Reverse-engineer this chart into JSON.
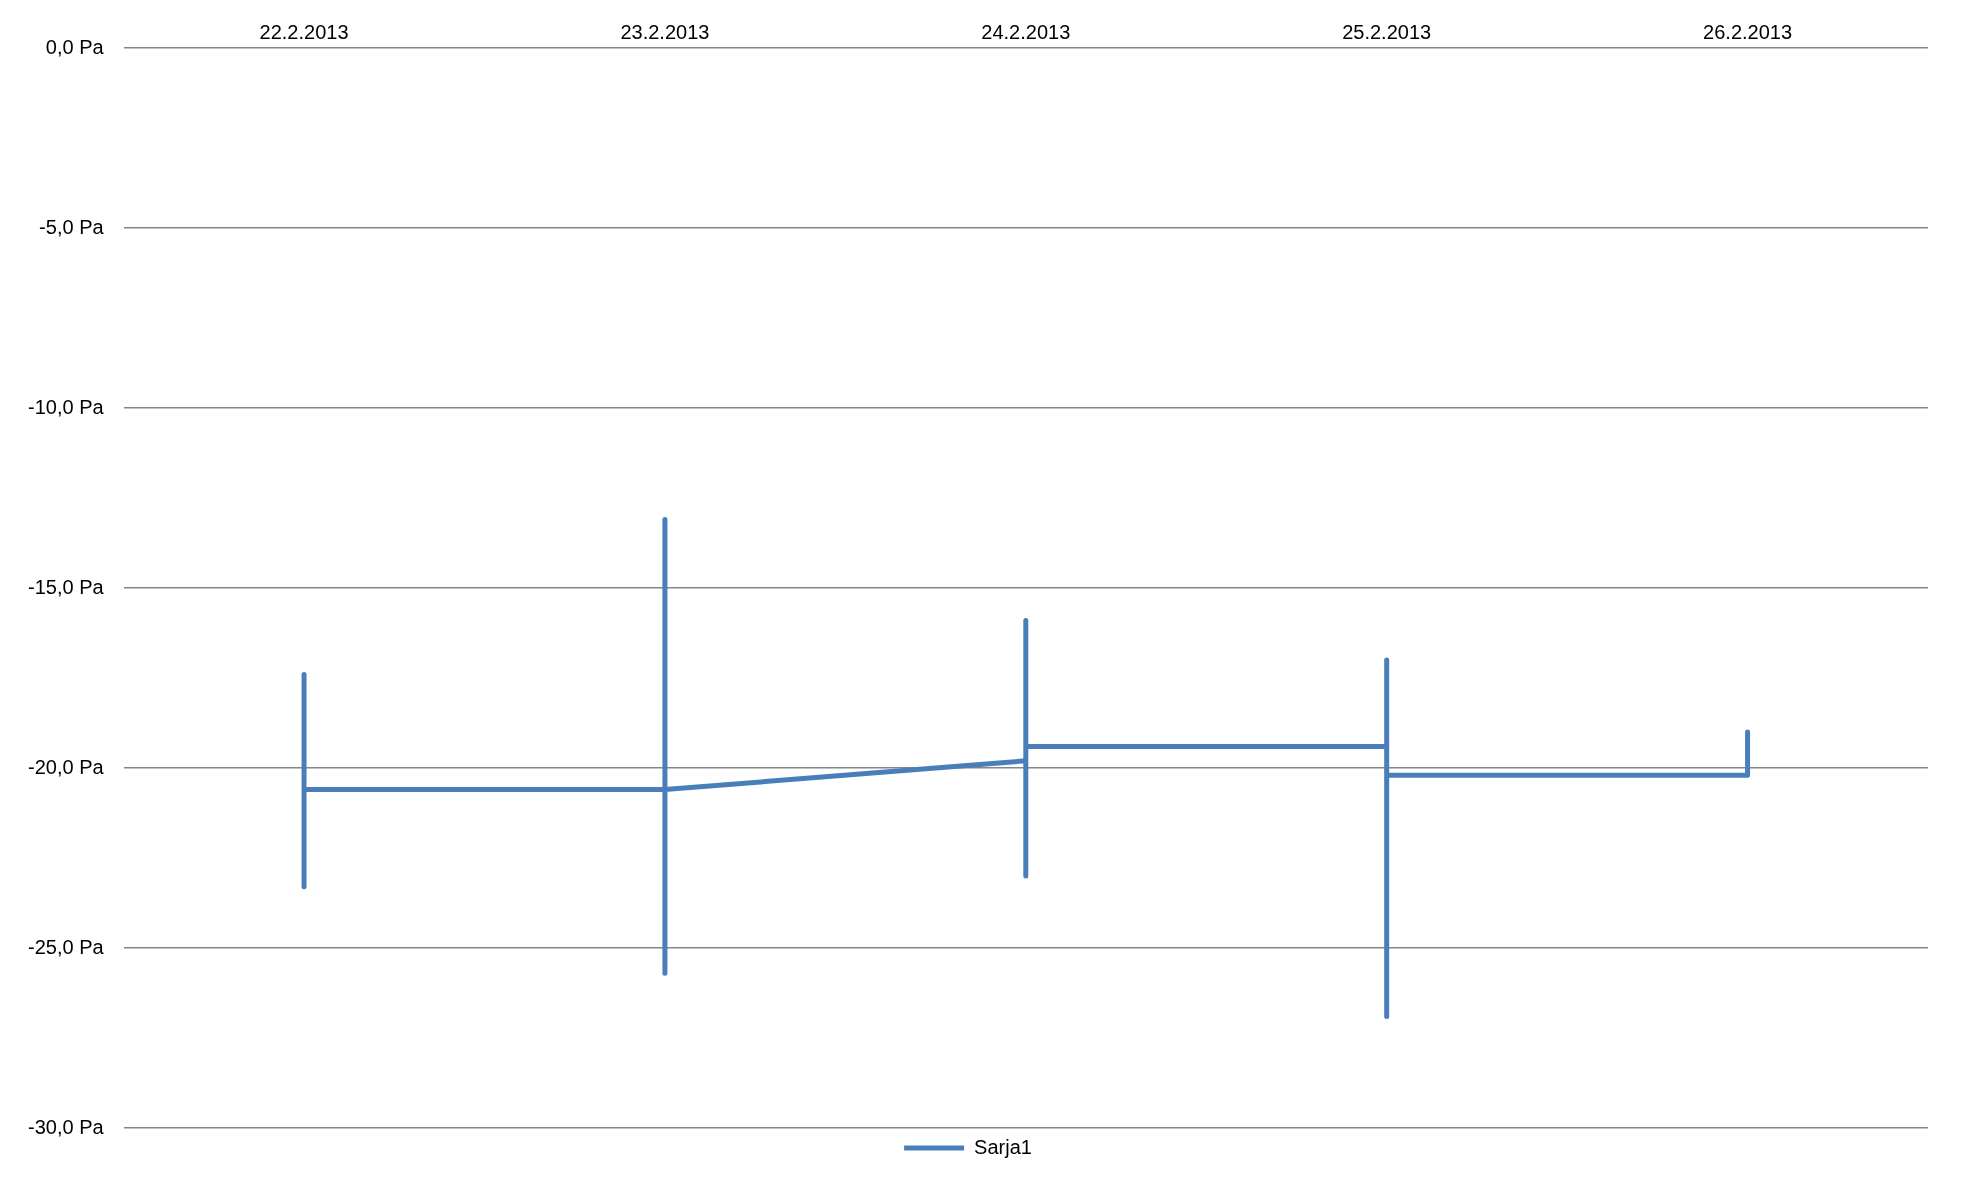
{
  "chart_data": {
    "type": "line",
    "x": [
      "2013-02-22T00:00",
      "2013-02-22T00:00",
      "2013-02-22T00:00",
      "2013-02-22T00:00",
      "2013-02-23T00:00",
      "2013-02-23T00:00",
      "2013-02-23T00:00",
      "2013-02-23T00:00",
      "2013-02-24T00:00",
      "2013-02-24T00:00",
      "2013-02-24T00:00",
      "2013-02-24T00:00",
      "2013-02-25T00:00",
      "2013-02-25T00:00",
      "2013-02-25T00:00",
      "2013-02-25T00:00",
      "2013-02-26T00:00",
      "2013-02-26T00:00"
    ],
    "series": [
      {
        "name": "Sarja1",
        "color": "#4a7ebb",
        "values": [
          -20.6,
          -17.4,
          -23.3,
          -20.6,
          -20.6,
          -13.1,
          -25.7,
          -20.6,
          -19.8,
          -15.9,
          -23.0,
          -19.4,
          -19.4,
          -17.0,
          -26.9,
          -20.2,
          -20.2,
          -19.0
        ]
      }
    ],
    "xlim": [
      "2013-02-21T12:00",
      "2013-02-26T12:00"
    ],
    "xticks": [
      {
        "value": "2013-02-22",
        "label": "22.2.2013"
      },
      {
        "value": "2013-02-23",
        "label": "23.2.2013"
      },
      {
        "value": "2013-02-24",
        "label": "24.2.2013"
      },
      {
        "value": "2013-02-25",
        "label": "25.2.2013"
      },
      {
        "value": "2013-02-26",
        "label": "26.2.2013"
      }
    ],
    "ylim": [
      -30,
      0
    ],
    "yticks": [
      {
        "value": 0,
        "label": "0,0 Pa"
      },
      {
        "value": -5,
        "label": "-5,0 Pa"
      },
      {
        "value": -10,
        "label": "-10,0 Pa"
      },
      {
        "value": -15,
        "label": "-15,0 Pa"
      },
      {
        "value": -20,
        "label": "-20,0 Pa"
      },
      {
        "value": -25,
        "label": "-25,0 Pa"
      },
      {
        "value": -30,
        "label": "-30,0 Pa"
      }
    ],
    "grid": "y",
    "legend": "bottom",
    "marker": "none",
    "line_style": "solid"
  }
}
